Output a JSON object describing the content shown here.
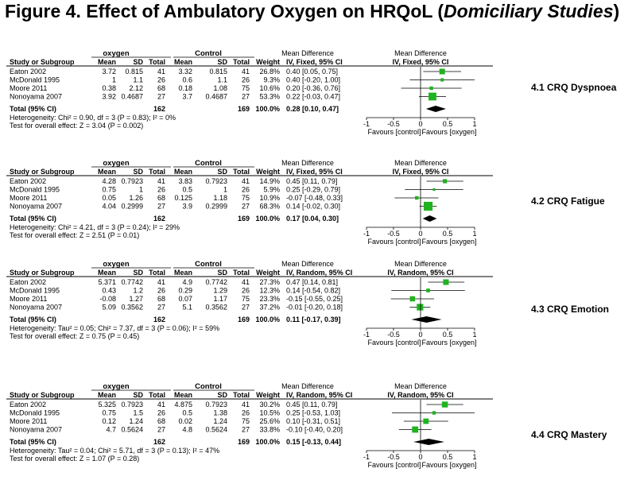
{
  "figure": {
    "title_pre": "Figure 4. Effect of Ambulatory Oxygen on HRQoL (",
    "title_italic": "Domiciliary Studies",
    "title_post": ")"
  },
  "headers": {
    "study": "Study or Subgroup",
    "group1": "oxygen",
    "group2": "Control",
    "mean": "Mean",
    "sd": "SD",
    "total": "Total",
    "weight": "Weight",
    "md": "Mean Difference",
    "favours_left": "Favours [control]",
    "favours_right": "Favours [oxygen]"
  },
  "chart_data": [
    {
      "type": "forest",
      "outcome": "4.1 CRQ Dyspnoea",
      "method": "IV, Fixed, 95% CI",
      "xlim": [
        -1,
        1
      ],
      "ticks": [
        "-1",
        "-0.5",
        "0",
        "0.5",
        "1"
      ],
      "rows": [
        {
          "study": "Eaton 2002",
          "m1": "3.72",
          "sd1": "0.815",
          "n1": "41",
          "m2": "3.32",
          "sd2": "0.815",
          "n2": "41",
          "weight": "26.8%",
          "ci_text": "0.40 [0.05, 0.75]",
          "md": 0.4,
          "lo": 0.05,
          "hi": 0.75
        },
        {
          "study": "McDonald 1995",
          "m1": "1",
          "sd1": "1.1",
          "n1": "26",
          "m2": "0.6",
          "sd2": "1.1",
          "n2": "26",
          "weight": "9.3%",
          "ci_text": "0.40 [-0.20, 1.00]",
          "md": 0.4,
          "lo": -0.2,
          "hi": 1.0
        },
        {
          "study": "Moore 2011",
          "m1": "0.38",
          "sd1": "2.12",
          "n1": "68",
          "m2": "0.18",
          "sd2": "1.08",
          "n2": "75",
          "weight": "10.6%",
          "ci_text": "0.20 [-0.36, 0.76]",
          "md": 0.2,
          "lo": -0.36,
          "hi": 0.76
        },
        {
          "study": "Nonoyama 2007",
          "m1": "3.92",
          "sd1": "0.4687",
          "n1": "27",
          "m2": "3.7",
          "sd2": "0.4687",
          "n2": "27",
          "weight": "53.3%",
          "ci_text": "0.22 [-0.03, 0.47]",
          "md": 0.22,
          "lo": -0.03,
          "hi": 0.47
        }
      ],
      "total": {
        "label": "Total (95% CI)",
        "n1": "162",
        "n2": "169",
        "weight": "100.0%",
        "ci_text": "0.28 [0.10, 0.47]",
        "md": 0.28,
        "lo": 0.1,
        "hi": 0.47
      },
      "heterogeneity": "Heterogeneity: Chi² = 0.90, df = 3 (P = 0.83); I² = 0%",
      "overall_effect": "Test for overall effect: Z = 3.04 (P = 0.002)"
    },
    {
      "type": "forest",
      "outcome": "4.2 CRQ Fatigue",
      "method": "IV, Fixed, 95% CI",
      "xlim": [
        -1,
        1
      ],
      "ticks": [
        "-1",
        "-0.5",
        "0",
        "0.5",
        "1"
      ],
      "rows": [
        {
          "study": "Eaton 2002",
          "m1": "4.28",
          "sd1": "0.7923",
          "n1": "41",
          "m2": "3.83",
          "sd2": "0.7923",
          "n2": "41",
          "weight": "14.9%",
          "ci_text": "0.45 [0.11, 0.79]",
          "md": 0.45,
          "lo": 0.11,
          "hi": 0.79
        },
        {
          "study": "McDonald 1995",
          "m1": "0.75",
          "sd1": "1",
          "n1": "26",
          "m2": "0.5",
          "sd2": "1",
          "n2": "26",
          "weight": "5.9%",
          "ci_text": "0.25 [-0.29, 0.79]",
          "md": 0.25,
          "lo": -0.29,
          "hi": 0.79
        },
        {
          "study": "Moore 2011",
          "m1": "0.05",
          "sd1": "1.26",
          "n1": "68",
          "m2": "0.125",
          "sd2": "1.18",
          "n2": "75",
          "weight": "10.9%",
          "ci_text": "-0.07 [-0.48, 0.33]",
          "md": -0.07,
          "lo": -0.48,
          "hi": 0.33
        },
        {
          "study": "Nonoyama 2007",
          "m1": "4.04",
          "sd1": "0.2999",
          "n1": "27",
          "m2": "3.9",
          "sd2": "0.2999",
          "n2": "27",
          "weight": "68.3%",
          "ci_text": "0.14 [-0.02, 0.30]",
          "md": 0.14,
          "lo": -0.02,
          "hi": 0.3
        }
      ],
      "total": {
        "label": "Total (95% CI)",
        "n1": "162",
        "n2": "169",
        "weight": "100.0%",
        "ci_text": "0.17 [0.04, 0.30]",
        "md": 0.17,
        "lo": 0.04,
        "hi": 0.3
      },
      "heterogeneity": "Heterogeneity: Chi² = 4.21, df = 3 (P = 0.24); I² = 29%",
      "overall_effect": "Test for overall effect: Z = 2.51 (P = 0.01)"
    },
    {
      "type": "forest",
      "outcome": "4.3 CRQ Emotion",
      "method": "IV, Random, 95% CI",
      "xlim": [
        -1,
        1
      ],
      "ticks": [
        "-1",
        "-0.5",
        "0",
        "0.5",
        "1"
      ],
      "rows": [
        {
          "study": "Eaton 2002",
          "m1": "5.371",
          "sd1": "0.7742",
          "n1": "41",
          "m2": "4.9",
          "sd2": "0.7742",
          "n2": "41",
          "weight": "27.3%",
          "ci_text": "0.47 [0.14, 0.81]",
          "md": 0.47,
          "lo": 0.14,
          "hi": 0.81
        },
        {
          "study": "McDonald 1995",
          "m1": "0.43",
          "sd1": "1.2",
          "n1": "26",
          "m2": "0.29",
          "sd2": "1.29",
          "n2": "26",
          "weight": "12.3%",
          "ci_text": "0.14 [-0.54, 0.82]",
          "md": 0.14,
          "lo": -0.54,
          "hi": 0.82
        },
        {
          "study": "Moore 2011",
          "m1": "-0.08",
          "sd1": "1.27",
          "n1": "68",
          "m2": "0.07",
          "sd2": "1.17",
          "n2": "75",
          "weight": "23.3%",
          "ci_text": "-0.15 [-0.55, 0.25]",
          "md": -0.15,
          "lo": -0.55,
          "hi": 0.25
        },
        {
          "study": "Nonoyama 2007",
          "m1": "5.09",
          "sd1": "0.3562",
          "n1": "27",
          "m2": "5.1",
          "sd2": "0.3562",
          "n2": "27",
          "weight": "37.2%",
          "ci_text": "-0.01 [-0.20, 0.18]",
          "md": -0.01,
          "lo": -0.2,
          "hi": 0.18
        }
      ],
      "total": {
        "label": "Total (95% CI)",
        "n1": "162",
        "n2": "169",
        "weight": "100.0%",
        "ci_text": "0.11 [-0.17, 0.39]",
        "md": 0.11,
        "lo": -0.17,
        "hi": 0.39
      },
      "heterogeneity": "Heterogeneity: Tau² = 0.05; Chi² = 7.37, df = 3 (P = 0.06); I² = 59%",
      "overall_effect": "Test for overall effect: Z = 0.75 (P = 0.45)"
    },
    {
      "type": "forest",
      "outcome": "4.4 CRQ Mastery",
      "method": "IV, Random, 95% CI",
      "xlim": [
        -1,
        1
      ],
      "ticks": [
        "-1",
        "-0.5",
        "0",
        "0.5",
        "1"
      ],
      "rows": [
        {
          "study": "Eaton 2002",
          "m1": "5.325",
          "sd1": "0.7923",
          "n1": "41",
          "m2": "4.875",
          "sd2": "0.7923",
          "n2": "41",
          "weight": "30.2%",
          "ci_text": "0.45 [0.11, 0.79]",
          "md": 0.45,
          "lo": 0.11,
          "hi": 0.79
        },
        {
          "study": "McDonald 1995",
          "m1": "0.75",
          "sd1": "1.5",
          "n1": "26",
          "m2": "0.5",
          "sd2": "1.38",
          "n2": "26",
          "weight": "10.5%",
          "ci_text": "0.25 [-0.53, 1.03]",
          "md": 0.25,
          "lo": -0.53,
          "hi": 1.03
        },
        {
          "study": "Moore 2011",
          "m1": "0.12",
          "sd1": "1.24",
          "n1": "68",
          "m2": "0.02",
          "sd2": "1.24",
          "n2": "75",
          "weight": "25.6%",
          "ci_text": "0.10 [-0.31, 0.51]",
          "md": 0.1,
          "lo": -0.31,
          "hi": 0.51
        },
        {
          "study": "Nonoyama 2007",
          "m1": "4.7",
          "sd1": "0.5624",
          "n1": "27",
          "m2": "4.8",
          "sd2": "0.5624",
          "n2": "27",
          "weight": "33.8%",
          "ci_text": "-0.10 [-0.40, 0.20]",
          "md": -0.1,
          "lo": -0.4,
          "hi": 0.2
        }
      ],
      "total": {
        "label": "Total (95% CI)",
        "n1": "162",
        "n2": "169",
        "weight": "100.0%",
        "ci_text": "0.15 [-0.13, 0.44]",
        "md": 0.15,
        "lo": -0.13,
        "hi": 0.44
      },
      "heterogeneity": "Heterogeneity: Tau² = 0.04; Chi² = 5.71, df = 3 (P = 0.13); I² = 47%",
      "overall_effect": "Test for overall effect: Z = 1.07 (P = 0.28)"
    }
  ],
  "colors": {
    "marker": "#1fb31f",
    "diamond": "#000000"
  }
}
